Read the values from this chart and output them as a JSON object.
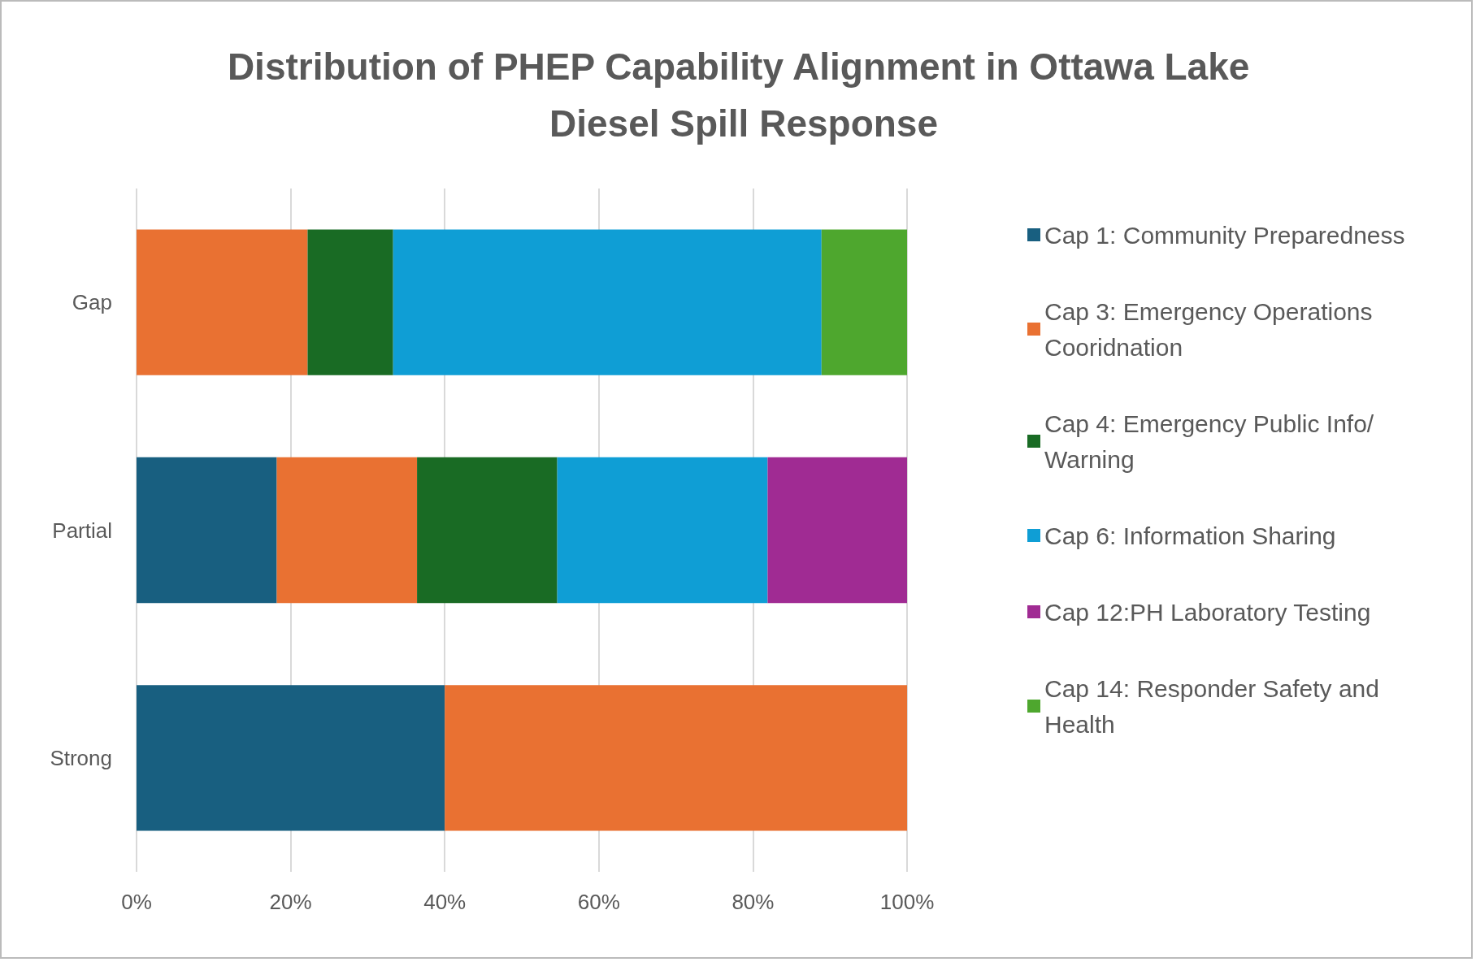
{
  "chart_data": {
    "type": "bar",
    "title": "Distribution of PHEP Capability Alignment in Ottawa Lake Diesel Spill Response",
    "orientation": "horizontal",
    "stacked": true,
    "categories": [
      "Gap",
      "Partial",
      "Strong"
    ],
    "series": [
      {
        "name": "Cap 1: Community Preparedness",
        "color": "#185f80",
        "values": [
          null,
          18.2,
          40
        ]
      },
      {
        "name": "Cap 3: Emergency Operations Cooridnation",
        "color": "#e97132",
        "values": [
          22.2,
          18.2,
          60
        ]
      },
      {
        "name": "Cap 4: Emergency Public Info/Warning",
        "color": "#196b24",
        "values": [
          11.1,
          18.2,
          null
        ]
      },
      {
        "name": "Cap 6: Information Sharing",
        "color": "#0f9ed5",
        "values": [
          55.6,
          27.3,
          null
        ]
      },
      {
        "name": "Cap 12:PH Laboratory Testing",
        "color": "#a02b93",
        "values": [
          null,
          18.2,
          null
        ]
      },
      {
        "name": "Cap 14: Responder Safety and Health",
        "color": "#4ea72e",
        "values": [
          11.1,
          null,
          null
        ]
      }
    ],
    "xlim": [
      0,
      100
    ],
    "xticks": [
      {
        "value": 0,
        "label": "0%"
      },
      {
        "value": 20,
        "label": "20%"
      },
      {
        "value": 40,
        "label": "40%"
      },
      {
        "value": 60,
        "label": "60%"
      },
      {
        "value": 80,
        "label": "80%"
      },
      {
        "value": 100,
        "label": "100%"
      }
    ],
    "grid": "x",
    "legend": "right"
  }
}
